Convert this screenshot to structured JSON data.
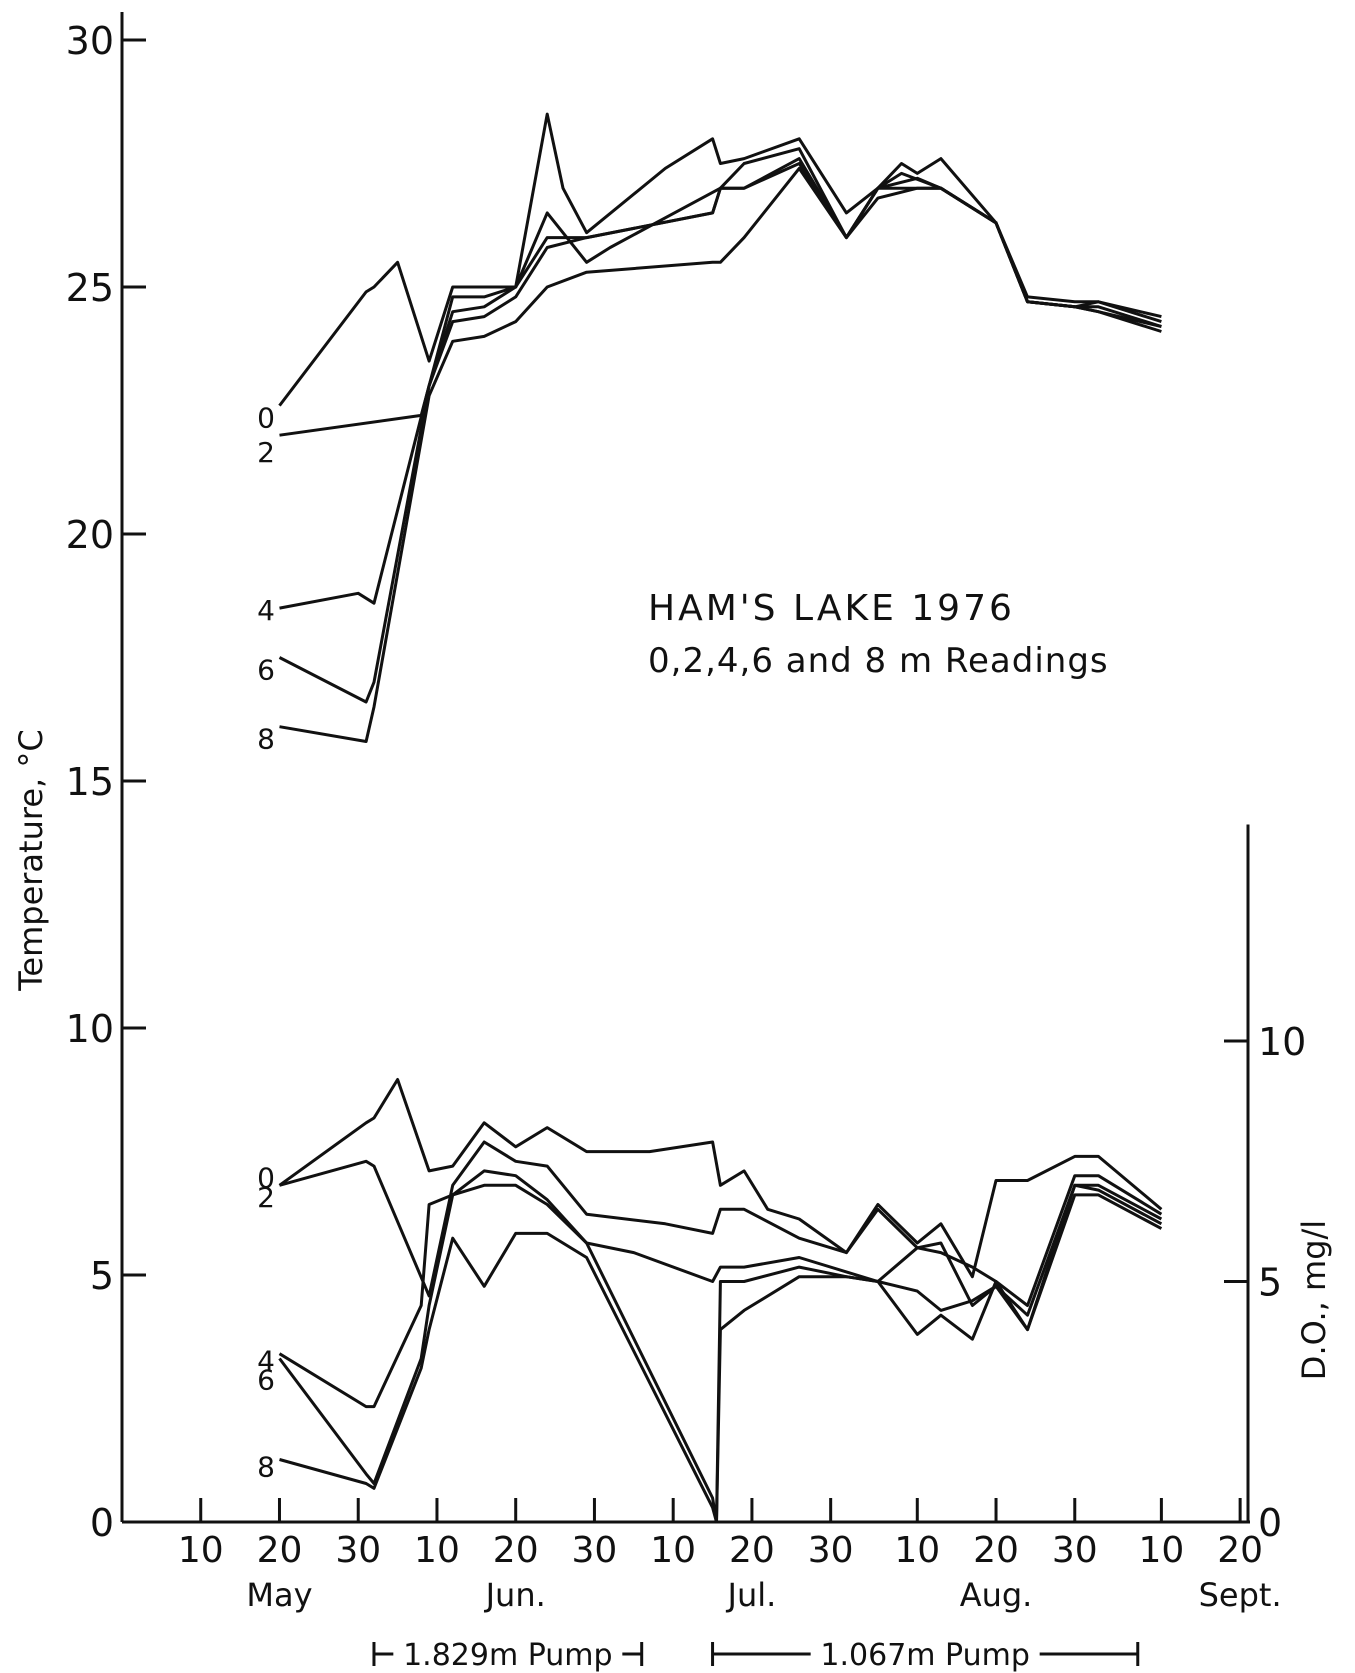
{
  "chart_data": [
    {
      "type": "line",
      "title": "HAM'S LAKE 1976",
      "subtitle": "0,2,4,6 and 8 m Readings",
      "ylabel": "Temperature, °C",
      "ylim": [
        0,
        30
      ],
      "yticks": [
        "0",
        "5",
        "10",
        "15",
        "20",
        "25",
        "30"
      ],
      "x_unit": "day-of-year",
      "xlim": [
        121,
        264
      ],
      "x_tick_labels": [
        {
          "day": 131,
          "label": "10"
        },
        {
          "day": 141,
          "label": "20"
        },
        {
          "day": 151,
          "label": "30"
        },
        {
          "day": 161,
          "label": "10"
        },
        {
          "day": 171,
          "label": "20"
        },
        {
          "day": 181,
          "label": "30"
        },
        {
          "day": 191,
          "label": "10"
        },
        {
          "day": 201,
          "label": "20"
        },
        {
          "day": 211,
          "label": "30"
        },
        {
          "day": 222,
          "label": "10"
        },
        {
          "day": 232,
          "label": "20"
        },
        {
          "day": 242,
          "label": "30"
        },
        {
          "day": 253,
          "label": "10"
        },
        {
          "day": 263,
          "label": "20"
        }
      ],
      "month_labels": [
        {
          "day": 141,
          "label": "May"
        },
        {
          "day": 171,
          "label": "Jun."
        },
        {
          "day": 201,
          "label": "Jul."
        },
        {
          "day": 232,
          "label": "Aug."
        },
        {
          "day": 263,
          "label": "Sept."
        }
      ],
      "series": [
        {
          "name": "0",
          "x": [
            141,
            152,
            153,
            156,
            160,
            163,
            167,
            171,
            175,
            177,
            180,
            190,
            196,
            197,
            200,
            207,
            213,
            217,
            220,
            222,
            225,
            232,
            236,
            242,
            245,
            253
          ],
          "y": [
            22.6,
            24.9,
            25.0,
            25.5,
            23.5,
            25.0,
            25.0,
            25.0,
            28.5,
            27.0,
            26.1,
            27.4,
            28.0,
            27.5,
            27.6,
            28.0,
            26.5,
            27.0,
            27.5,
            27.3,
            27.6,
            26.3,
            24.8,
            24.7,
            24.7,
            24.4
          ]
        },
        {
          "name": "2",
          "x": [
            141,
            159,
            163,
            167,
            171,
            175,
            180,
            183,
            190,
            197,
            200,
            207,
            213,
            217,
            220,
            225,
            232,
            236,
            242,
            245,
            253
          ],
          "y": [
            22.0,
            22.4,
            24.8,
            24.8,
            25.0,
            26.5,
            25.5,
            25.8,
            26.4,
            27.0,
            27.5,
            27.8,
            26.0,
            27.0,
            27.3,
            27.0,
            26.3,
            24.7,
            24.6,
            24.7,
            24.3
          ]
        },
        {
          "name": "4",
          "x": [
            141,
            151,
            153,
            160,
            163,
            167,
            171,
            175,
            180,
            196,
            197,
            200,
            207,
            213,
            217,
            222,
            225,
            232,
            236,
            242,
            245,
            253
          ],
          "y": [
            18.5,
            18.8,
            18.6,
            23.0,
            24.5,
            24.6,
            25.0,
            26.0,
            26.0,
            26.5,
            27.0,
            27.0,
            27.6,
            26.0,
            27.0,
            27.2,
            27.0,
            26.3,
            24.7,
            24.6,
            24.6,
            24.2
          ]
        },
        {
          "name": "6",
          "x": [
            141,
            152,
            153,
            160,
            163,
            167,
            171,
            175,
            180,
            196,
            197,
            200,
            207,
            213,
            217,
            222,
            225,
            232,
            236,
            242,
            245,
            253
          ],
          "y": [
            17.5,
            16.6,
            17.0,
            23.0,
            24.3,
            24.4,
            24.8,
            25.8,
            26.0,
            26.5,
            27.0,
            27.0,
            27.5,
            26.0,
            27.0,
            27.0,
            27.0,
            26.3,
            24.7,
            24.6,
            24.5,
            24.2
          ]
        },
        {
          "name": "8",
          "x": [
            141,
            152,
            153,
            160,
            163,
            167,
            171,
            175,
            180,
            196,
            197,
            200,
            207,
            213,
            217,
            222,
            225,
            232,
            236,
            242,
            245,
            253
          ],
          "y": [
            16.1,
            15.8,
            16.5,
            22.8,
            23.9,
            24.0,
            24.3,
            25.0,
            25.3,
            25.5,
            25.5,
            26.0,
            27.4,
            26.0,
            26.8,
            27.0,
            27.0,
            26.3,
            24.7,
            24.6,
            24.5,
            24.1
          ]
        }
      ],
      "series_labels": [
        {
          "text": "0",
          "y": 22.4
        },
        {
          "text": "2",
          "y": 21.7
        },
        {
          "text": "4",
          "y": 18.5
        },
        {
          "text": "6",
          "y": 17.3
        },
        {
          "text": "8",
          "y": 15.9
        }
      ]
    },
    {
      "type": "line",
      "ylabel": "D.O., mg/l",
      "ylim": [
        0,
        15
      ],
      "yticks": [
        "0",
        "5",
        "10"
      ],
      "x_unit": "day-of-year",
      "xlim": [
        121,
        264
      ],
      "series": [
        {
          "name": "0",
          "x": [
            141,
            152,
            153,
            156,
            160,
            163,
            167,
            171,
            175,
            180,
            188,
            196,
            197,
            200,
            203,
            207,
            213,
            217,
            222,
            225,
            229,
            232,
            236,
            242,
            245,
            253
          ],
          "y": [
            7.0,
            8.3,
            8.4,
            9.2,
            7.3,
            7.4,
            8.3,
            7.8,
            8.2,
            7.7,
            7.7,
            7.9,
            7.0,
            7.3,
            6.5,
            6.3,
            5.6,
            6.6,
            5.8,
            6.2,
            5.1,
            7.1,
            7.1,
            7.6,
            7.6,
            6.5
          ]
        },
        {
          "name": "2",
          "x": [
            141,
            152,
            153,
            160,
            163,
            167,
            171,
            175,
            180,
            190,
            196,
            197,
            200,
            207,
            213,
            217,
            222,
            225,
            229,
            232,
            236,
            242,
            245,
            253
          ],
          "y": [
            7.0,
            7.5,
            7.4,
            4.7,
            7.0,
            7.9,
            7.5,
            7.4,
            6.4,
            6.2,
            6.0,
            6.5,
            6.5,
            5.9,
            5.6,
            6.5,
            5.7,
            5.6,
            5.3,
            5.0,
            4.5,
            7.2,
            7.2,
            6.4
          ]
        },
        {
          "name": "4",
          "x": [
            141,
            152,
            153,
            159,
            160,
            163,
            167,
            171,
            175,
            180,
            186,
            196,
            197,
            200,
            207,
            213,
            217,
            222,
            225,
            229,
            232,
            236,
            242,
            245,
            253
          ],
          "y": [
            3.5,
            2.4,
            2.4,
            4.5,
            6.6,
            6.8,
            7.3,
            7.2,
            6.7,
            5.8,
            5.6,
            5.0,
            5.3,
            5.3,
            5.5,
            5.2,
            5.0,
            5.7,
            5.8,
            4.5,
            4.9,
            4.3,
            7.0,
            7.0,
            6.3
          ]
        },
        {
          "name": "6",
          "x": [
            141,
            152,
            153,
            159,
            160,
            163,
            167,
            171,
            175,
            180,
            196,
            196.5,
            197,
            200,
            207,
            213,
            217,
            222,
            225,
            229,
            232,
            236,
            242,
            245,
            253
          ],
          "y": [
            3.4,
            1.0,
            0.8,
            3.4,
            4.5,
            6.8,
            7.0,
            7.0,
            6.6,
            5.8,
            0.5,
            0.0,
            5.0,
            5.0,
            5.3,
            5.1,
            5.0,
            4.8,
            4.4,
            4.6,
            4.9,
            4.0,
            7.0,
            6.9,
            6.2
          ]
        },
        {
          "name": "8",
          "x": [
            141,
            152,
            153,
            159,
            160,
            163,
            167,
            171,
            175,
            180,
            196,
            196.5,
            197,
            200,
            207,
            213,
            217,
            222,
            225,
            229,
            232,
            236,
            242,
            245,
            253
          ],
          "y": [
            1.3,
            0.8,
            0.7,
            3.2,
            4.0,
            5.9,
            4.9,
            6.0,
            6.0,
            5.5,
            0.3,
            0.0,
            4.0,
            4.4,
            5.1,
            5.1,
            5.0,
            3.9,
            4.3,
            3.8,
            5.0,
            4.0,
            6.8,
            6.8,
            6.1
          ]
        }
      ],
      "series_labels": [
        {
          "text": "0",
          "y": 7.2
        },
        {
          "text": "2",
          "y": 6.8
        },
        {
          "text": "4",
          "y": 3.4
        },
        {
          "text": "6",
          "y": 3.0
        },
        {
          "text": "8",
          "y": 1.2
        }
      ]
    }
  ],
  "pump_periods": [
    {
      "label": "1.829m Pump",
      "start_day": 153,
      "end_day": 187
    },
    {
      "label": "1.067m Pump",
      "start_day": 196,
      "end_day": 250
    }
  ]
}
